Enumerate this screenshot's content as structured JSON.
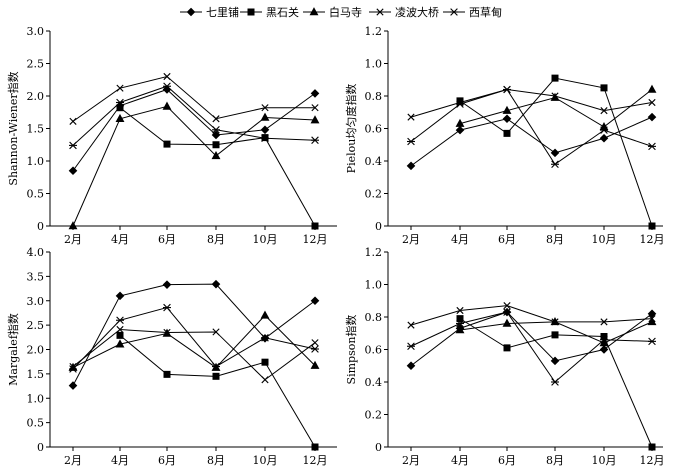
{
  "legend": {
    "items": [
      {
        "name": "七里铺",
        "marker": "diamond"
      },
      {
        "name": "黑石关",
        "marker": "square"
      },
      {
        "name": "白马寺",
        "marker": "triangle"
      },
      {
        "name": "凌波大桥",
        "marker": "x"
      },
      {
        "name": "西草甸",
        "marker": "star"
      }
    ]
  },
  "chart_data": [
    {
      "type": "line",
      "ylabel": "Shannon-Wiener指数",
      "categories": [
        "2月",
        "4月",
        "6月",
        "8月",
        "10月",
        "12月"
      ],
      "ylim": [
        0,
        3.0
      ],
      "yticks": [
        "0",
        "0.5",
        "1.0",
        "1.5",
        "2.0",
        "2.5",
        "3.0"
      ],
      "series": [
        {
          "name": "七里铺",
          "values": [
            0.85,
            1.85,
            2.1,
            1.4,
            1.48,
            2.04
          ]
        },
        {
          "name": "黑石关",
          "values": [
            null,
            1.82,
            1.26,
            1.25,
            1.36,
            0.0
          ]
        },
        {
          "name": "白马寺",
          "values": [
            0.0,
            1.65,
            1.84,
            1.08,
            1.67,
            1.63
          ]
        },
        {
          "name": "凌波大桥",
          "values": [
            1.61,
            2.12,
            2.3,
            1.65,
            1.82,
            1.82
          ]
        },
        {
          "name": "西草甸",
          "values": [
            1.24,
            1.9,
            2.15,
            1.48,
            1.35,
            1.32
          ]
        }
      ]
    },
    {
      "type": "line",
      "ylabel": "Pielou均匀度指数",
      "categories": [
        "2月",
        "4月",
        "6月",
        "8月",
        "10月",
        "12月"
      ],
      "ylim": [
        0,
        1.2
      ],
      "yticks": [
        "0",
        "0.2",
        "0.4",
        "0.6",
        "0.8",
        "1.0",
        "1.2"
      ],
      "series": [
        {
          "name": "七里铺",
          "values": [
            0.37,
            0.59,
            0.66,
            0.45,
            0.54,
            0.67
          ]
        },
        {
          "name": "黑石关",
          "values": [
            null,
            0.77,
            0.57,
            0.91,
            0.85,
            0.0
          ]
        },
        {
          "name": "白马寺",
          "values": [
            null,
            0.63,
            0.71,
            0.79,
            0.61,
            0.84
          ]
        },
        {
          "name": "凌波大桥",
          "values": [
            0.67,
            0.76,
            0.84,
            0.8,
            0.71,
            0.76
          ]
        },
        {
          "name": "西草甸",
          "values": [
            0.52,
            0.75,
            0.84,
            0.38,
            0.59,
            0.49
          ]
        }
      ]
    },
    {
      "type": "line",
      "ylabel": "Margalef指数",
      "categories": [
        "2月",
        "4月",
        "6月",
        "8月",
        "10月",
        "12月"
      ],
      "ylim": [
        0,
        4.0
      ],
      "yticks": [
        "0",
        "0.5",
        "1.0",
        "1.5",
        "2.0",
        "2.5",
        "3.0",
        "3.5",
        "4.0"
      ],
      "series": [
        {
          "name": "七里铺",
          "values": [
            1.26,
            3.1,
            3.33,
            3.34,
            2.23,
            3.0
          ]
        },
        {
          "name": "黑石关",
          "values": [
            null,
            2.29,
            1.49,
            1.45,
            1.74,
            0.0
          ]
        },
        {
          "name": "白马寺",
          "values": [
            1.63,
            2.11,
            2.33,
            1.63,
            2.7,
            1.67
          ]
        },
        {
          "name": "凌波大桥",
          "values": [
            1.65,
            2.41,
            2.35,
            2.36,
            1.38,
            2.14
          ]
        },
        {
          "name": "西草甸",
          "values": [
            1.6,
            2.6,
            2.86,
            1.65,
            2.24,
            2.01
          ]
        }
      ]
    },
    {
      "type": "line",
      "ylabel": "Simpson指数",
      "categories": [
        "2月",
        "4月",
        "6月",
        "8月",
        "10月",
        "12月"
      ],
      "ylim": [
        0,
        1.2
      ],
      "yticks": [
        "0",
        "0.2",
        "0.4",
        "0.6",
        "0.8",
        "1.0",
        "1.2"
      ],
      "series": [
        {
          "name": "七里铺",
          "values": [
            0.5,
            0.73,
            0.83,
            0.53,
            0.6,
            0.82
          ]
        },
        {
          "name": "黑石关",
          "values": [
            null,
            0.79,
            0.61,
            0.69,
            0.68,
            0.0
          ]
        },
        {
          "name": "白马寺",
          "values": [
            null,
            0.72,
            0.76,
            0.77,
            0.64,
            0.77
          ]
        },
        {
          "name": "凌波大桥",
          "values": [
            0.75,
            0.84,
            0.87,
            0.77,
            0.77,
            0.79
          ]
        },
        {
          "name": "西草甸",
          "values": [
            0.62,
            0.76,
            0.83,
            0.4,
            0.66,
            0.65
          ]
        }
      ]
    }
  ]
}
